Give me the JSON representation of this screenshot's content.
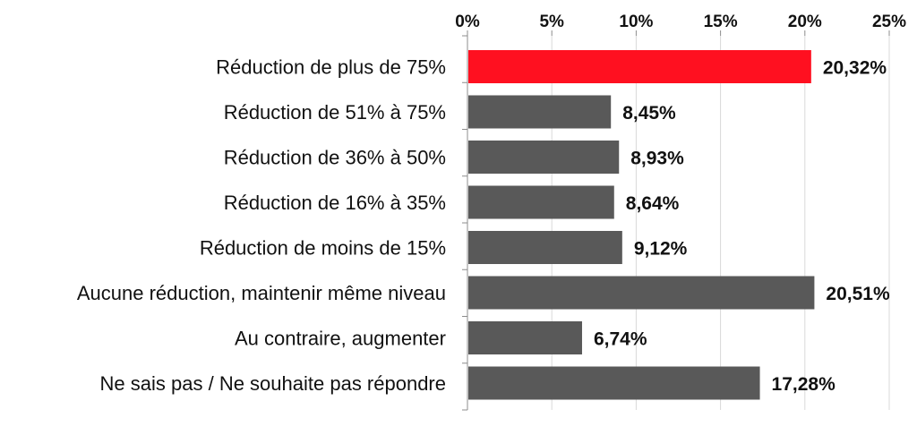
{
  "chart_data": {
    "type": "bar",
    "orientation": "horizontal",
    "categories": [
      "Réduction de plus de 75%",
      "Réduction de 51% à 75%",
      "Réduction de 36% à 50%",
      "Réduction de 16% à 35%",
      "Réduction de moins de 15%",
      "Aucune réduction, maintenir même niveau",
      "Au contraire, augmenter",
      "Ne sais pas / Ne souhaite pas répondre"
    ],
    "values": [
      20.32,
      8.45,
      8.93,
      8.64,
      9.12,
      20.51,
      6.74,
      17.28
    ],
    "value_labels": [
      "20,32%",
      "8,45%",
      "8,93%",
      "8,64%",
      "9,12%",
      "20,51%",
      "6,74%",
      "17,28%"
    ],
    "xlim": [
      0,
      25
    ],
    "ticks": [
      0,
      5,
      10,
      15,
      20,
      25
    ],
    "tick_labels": [
      "0%",
      "5%",
      "10%",
      "15%",
      "20%",
      "25%"
    ],
    "axis_position": "top",
    "grid": true,
    "colors": {
      "highlight": "#ff1020",
      "default": "#595959",
      "grid": "#d9d9d9"
    },
    "highlight_index": 0,
    "title": "",
    "xlabel": "",
    "ylabel": ""
  }
}
